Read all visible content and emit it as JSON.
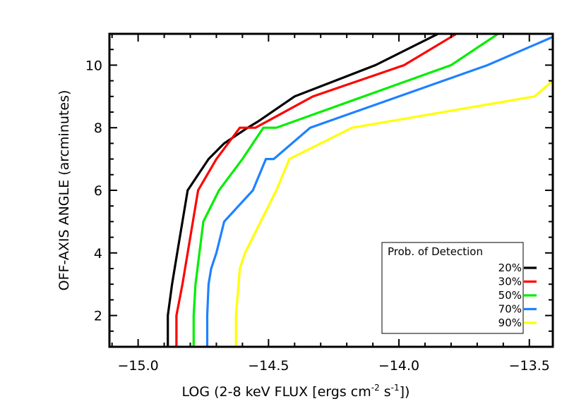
{
  "chart_data": {
    "type": "line",
    "title": "",
    "xlabel": "LOG (2-8 keV FLUX [ergs cm",
    "xlabel_sup1": "-2",
    "xlabel_mid": " s",
    "xlabel_sup2": "-1",
    "xlabel_end": "])",
    "ylabel": "OFF-AXIS ANGLE (arcminutes)",
    "xlim": [
      -15.11,
      -13.41
    ],
    "ylim": [
      1.0,
      11.0
    ],
    "xticks": [
      -15.0,
      -14.5,
      -14.0,
      -13.5
    ],
    "xtick_labels": [
      "−15.0",
      "−14.5",
      "−14.0",
      "−13.5"
    ],
    "yticks": [
      2,
      4,
      6,
      8,
      10
    ],
    "ytick_labels": [
      "2",
      "4",
      "6",
      "8",
      "10"
    ],
    "grid": false,
    "legend": {
      "title": "Prob. of Detection",
      "position": "bottom-right"
    },
    "series": [
      {
        "name": "20%",
        "color": "#000000",
        "x": [
          -14.886,
          -14.886,
          -14.87,
          -14.85,
          -14.81,
          -14.73,
          -14.67,
          -14.58,
          -14.54,
          -14.4,
          -14.09,
          -13.85
        ],
        "y": [
          1.0,
          2.0,
          3.0,
          4.0,
          6.0,
          7.0,
          7.5,
          8.0,
          8.2,
          9.0,
          10.0,
          11.0
        ]
      },
      {
        "name": "30%",
        "color": "#ff0000",
        "x": [
          -14.853,
          -14.853,
          -14.83,
          -14.79,
          -14.77,
          -14.7,
          -14.61,
          -14.55,
          -14.33,
          -13.98,
          -13.78
        ],
        "y": [
          1.0,
          2.0,
          3.0,
          5.0,
          6.0,
          7.0,
          8.0,
          8.0,
          9.0,
          10.0,
          11.0
        ]
      },
      {
        "name": "50%",
        "color": "#00ee00",
        "x": [
          -14.787,
          -14.787,
          -14.78,
          -14.75,
          -14.69,
          -14.6,
          -14.52,
          -14.47,
          -13.8,
          -13.62
        ],
        "y": [
          1.0,
          2.0,
          3.0,
          5.0,
          6.0,
          7.0,
          8.0,
          8.0,
          10.0,
          11.0
        ]
      },
      {
        "name": "70%",
        "color": "#1e82ff",
        "x": [
          -14.735,
          -14.735,
          -14.73,
          -14.72,
          -14.7,
          -14.67,
          -14.56,
          -14.51,
          -14.48,
          -14.34,
          -13.66,
          -13.41
        ],
        "y": [
          1.0,
          2.0,
          3.0,
          3.5,
          4.0,
          5.0,
          6.0,
          7.0,
          7.0,
          8.0,
          10.0,
          10.9
        ]
      },
      {
        "name": "90%",
        "color": "#ffff00",
        "x": [
          -14.625,
          -14.625,
          -14.615,
          -14.61,
          -14.59,
          -14.56,
          -14.53,
          -14.47,
          -14.42,
          -14.18,
          -13.48,
          -13.41
        ],
        "y": [
          1.0,
          2.0,
          3.0,
          3.5,
          4.0,
          4.5,
          5.0,
          6.0,
          7.0,
          8.0,
          9.0,
          9.5
        ]
      }
    ]
  }
}
